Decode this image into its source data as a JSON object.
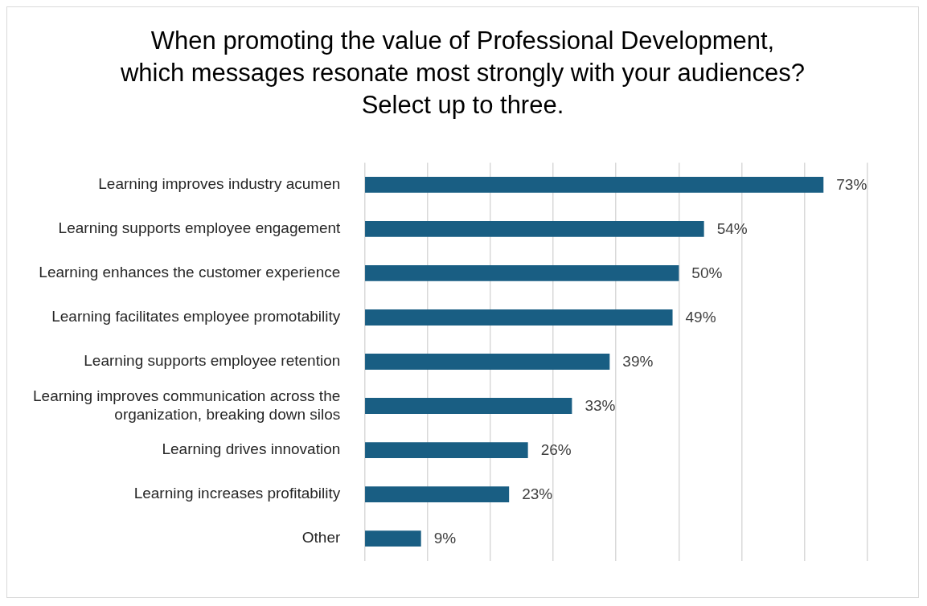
{
  "chart_data": {
    "type": "bar",
    "orientation": "horizontal",
    "title": "When promoting the value of Professional Development, which messages resonate most strongly with your audiences? Select up to three.",
    "categories": [
      "Learning improves industry acumen",
      "Learning supports employee engagement",
      "Learning enhances the customer experience",
      "Learning facilitates employee promotability",
      "Learning supports employee retention",
      "Learning improves communication across the organization, breaking down silos",
      "Learning drives innovation",
      "Learning increases profitability",
      "Other"
    ],
    "values": [
      73,
      54,
      50,
      49,
      39,
      33,
      26,
      23,
      9
    ],
    "value_labels": [
      "73%",
      "54%",
      "50%",
      "49%",
      "39%",
      "33%",
      "26%",
      "23%",
      "9%"
    ],
    "color": "#195e83",
    "xlim": [
      0,
      80
    ],
    "xticks": [
      {
        "value": 0,
        "label": null
      },
      {
        "value": 10,
        "label": null
      },
      {
        "value": 20,
        "label": null
      },
      {
        "value": 30,
        "label": null
      },
      {
        "value": 40,
        "label": null
      },
      {
        "value": 50,
        "label": null
      },
      {
        "value": 60,
        "label": null
      },
      {
        "value": 70,
        "label": null
      },
      {
        "value": 80,
        "label": null
      }
    ],
    "tick_labels": "y",
    "grid": "x",
    "legend": false
  }
}
